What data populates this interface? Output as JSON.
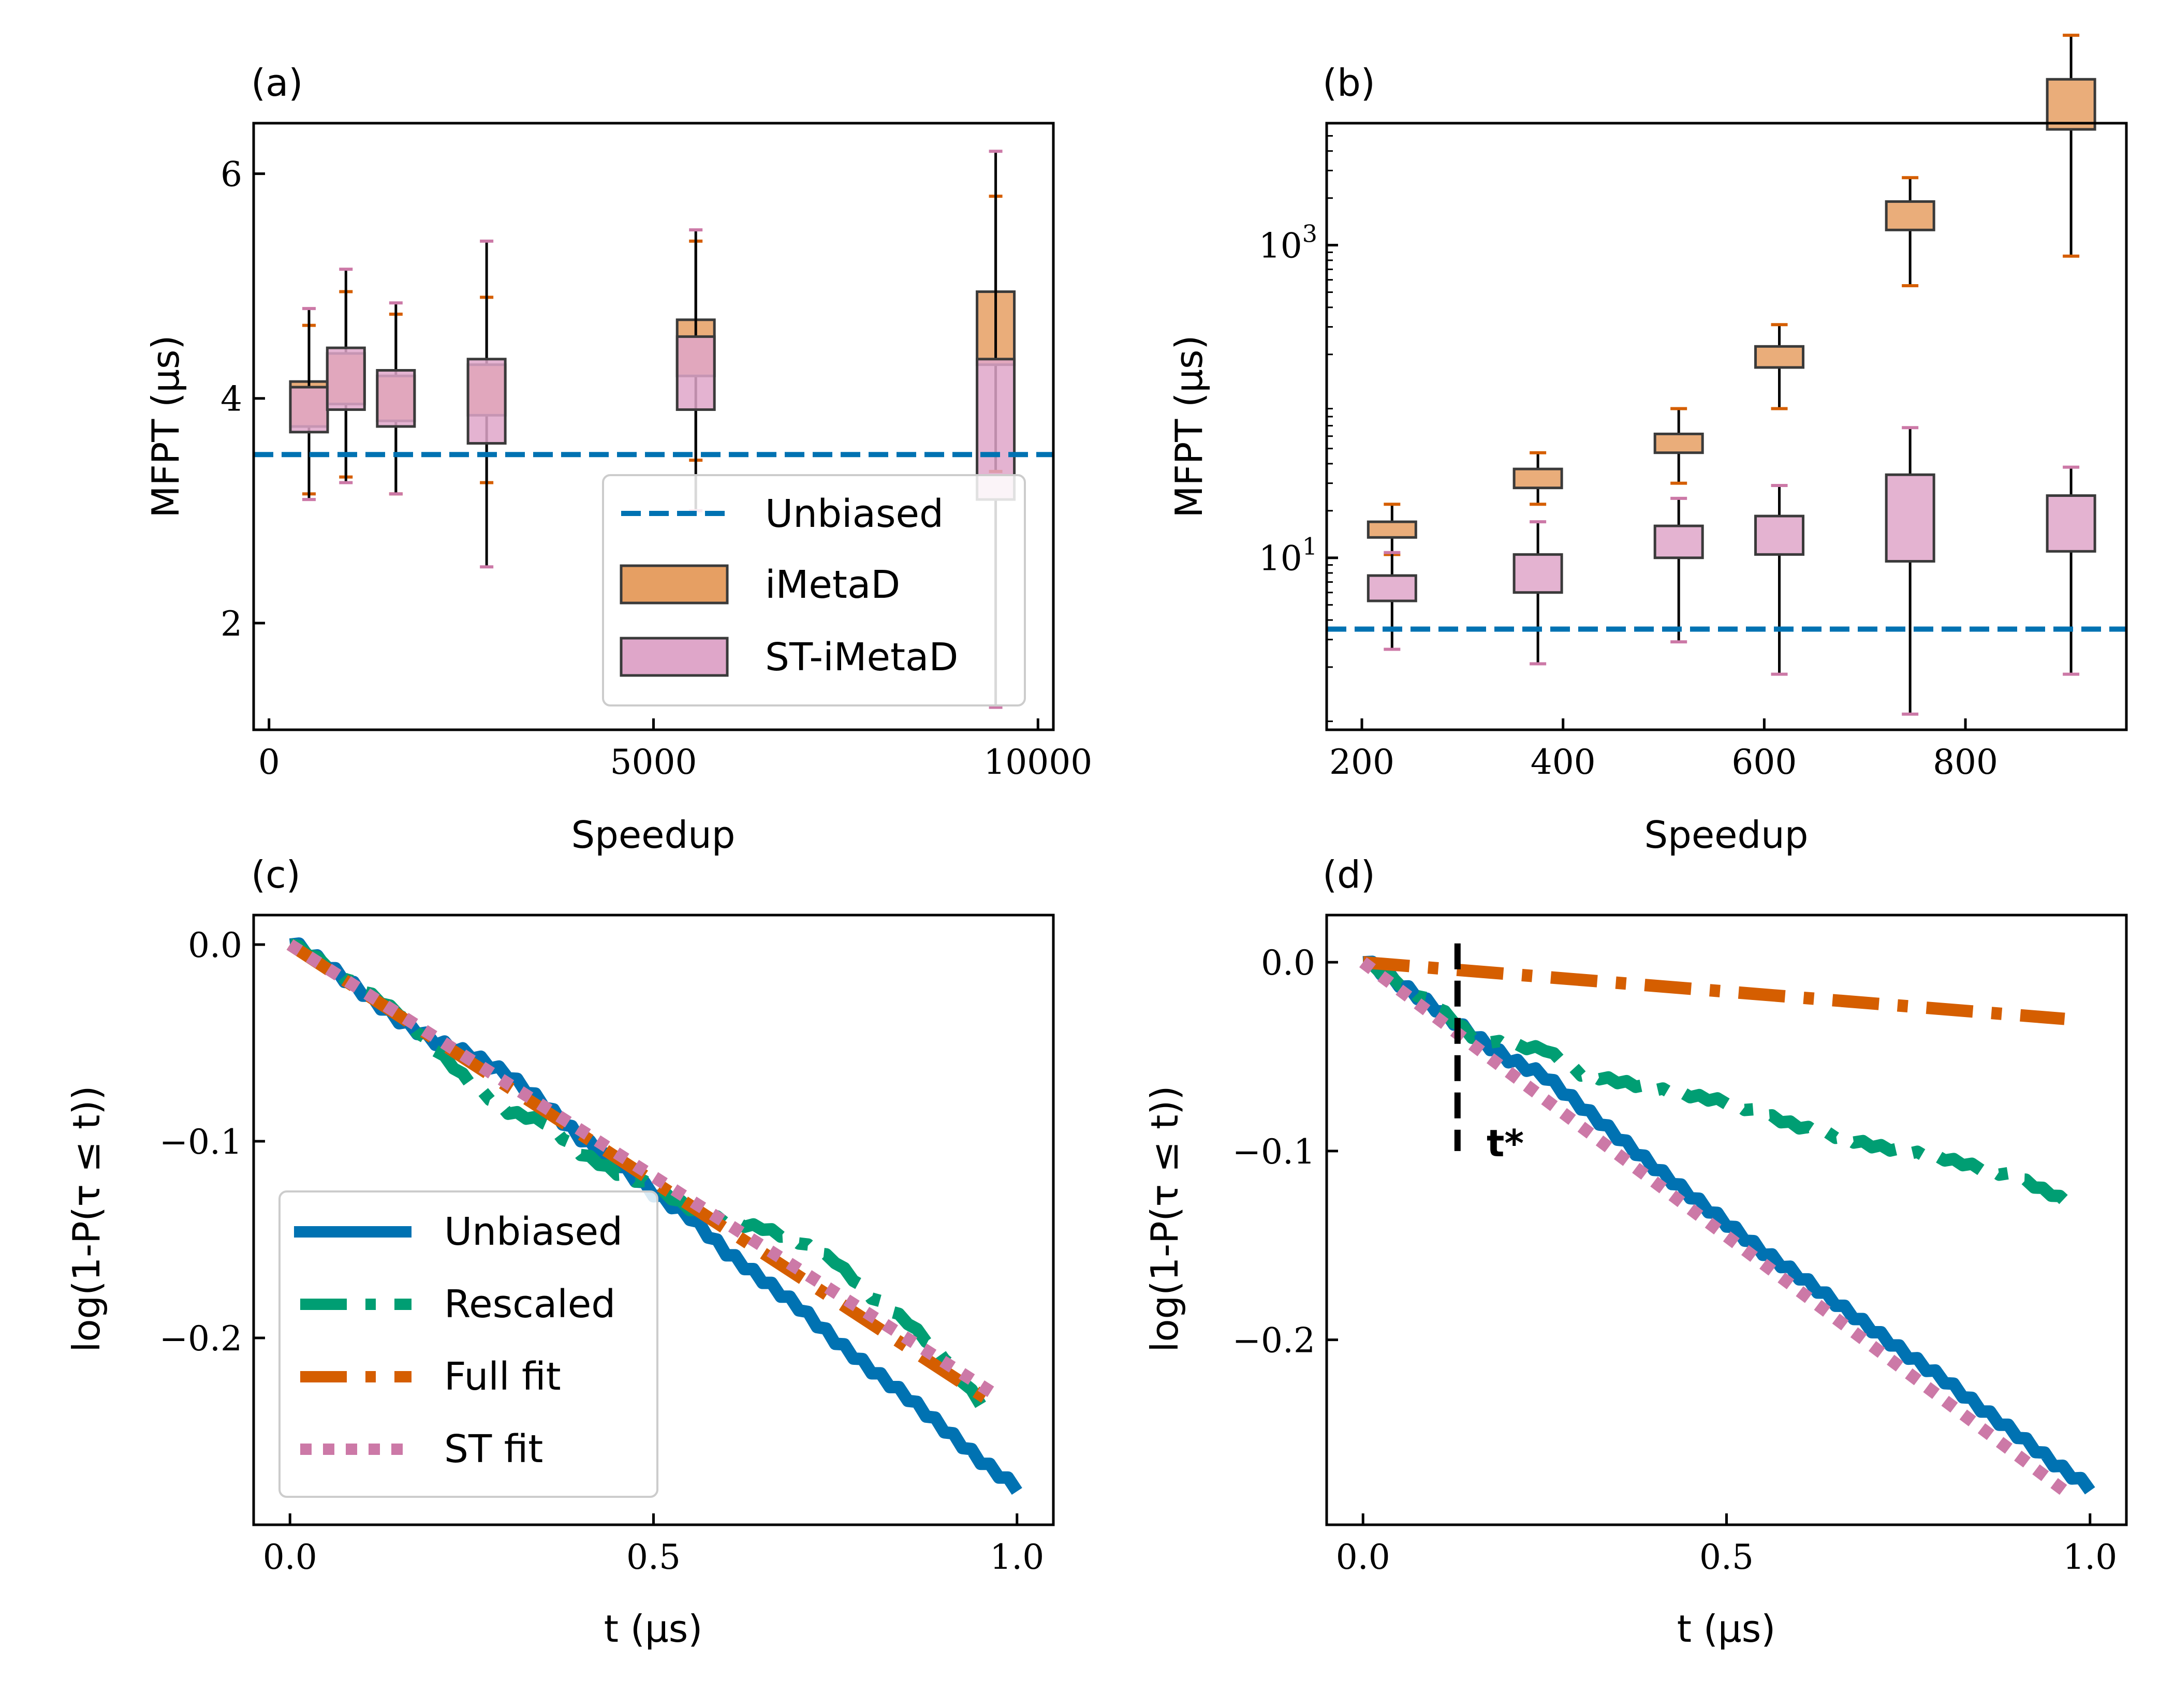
{
  "colors": {
    "unbiased": "#0072b2",
    "rescaled": "#009e73",
    "full_fit": "#d55e00",
    "st_fit": "#cc79a7",
    "imetad_fill": "#e69f63",
    "imetad_whisker": "#d55e00",
    "st_imetad_fill": "#dfa6c9",
    "st_imetad_whisker": "#cc79a7"
  },
  "chart_data": [
    {
      "panel": "(a)",
      "type": "box",
      "xlabel": "Speedup",
      "ylabel": "MFPT (μs)",
      "xlim": [
        -200,
        10200
      ],
      "ylim": [
        1.05,
        6.45
      ],
      "xticks": [
        0,
        5000,
        10000
      ],
      "xticklabels": [
        "0",
        "5000",
        "10000"
      ],
      "yticks": [
        2,
        4,
        6
      ],
      "yticklabels": [
        "2",
        "4",
        "6"
      ],
      "hline": {
        "name": "Unbiased",
        "y": 3.5
      },
      "legend_position": "lower-right",
      "legend": [
        "Unbiased",
        "iMetaD",
        "ST-iMetaD"
      ],
      "series": [
        {
          "name": "iMetaD",
          "boxes": [
            {
              "x": 520,
              "whislo": 3.15,
              "q1": 3.75,
              "q3": 4.15,
              "whishi": 4.65
            },
            {
              "x": 1000,
              "whislo": 3.3,
              "q1": 3.95,
              "q3": 4.4,
              "whishi": 4.95
            },
            {
              "x": 1650,
              "whislo": 3.15,
              "q1": 3.8,
              "q3": 4.2,
              "whishi": 4.75
            },
            {
              "x": 2830,
              "whislo": 3.25,
              "q1": 3.85,
              "q3": 4.3,
              "whishi": 4.9
            },
            {
              "x": 5550,
              "whislo": 3.45,
              "q1": 4.2,
              "q3": 4.7,
              "whishi": 5.4
            },
            {
              "x": 9450,
              "whislo": 3.35,
              "q1": 4.3,
              "q3": 4.95,
              "whishi": 5.8
            }
          ]
        },
        {
          "name": "ST-iMetaD",
          "boxes": [
            {
              "x": 520,
              "whislo": 3.1,
              "q1": 3.7,
              "q3": 4.1,
              "whishi": 4.8
            },
            {
              "x": 1000,
              "whislo": 3.25,
              "q1": 3.9,
              "q3": 4.45,
              "whishi": 5.15
            },
            {
              "x": 1650,
              "whislo": 3.15,
              "q1": 3.75,
              "q3": 4.25,
              "whishi": 4.85
            },
            {
              "x": 2830,
              "whislo": 2.5,
              "q1": 3.6,
              "q3": 4.35,
              "whishi": 5.4
            },
            {
              "x": 5550,
              "whislo": 3.0,
              "q1": 3.9,
              "q3": 4.55,
              "whishi": 5.5
            },
            {
              "x": 9450,
              "whislo": 1.25,
              "q1": 3.1,
              "q3": 4.35,
              "whishi": 6.2
            }
          ]
        }
      ]
    },
    {
      "panel": "(b)",
      "type": "box",
      "xlabel": "Speedup",
      "ylabel": "MFPT (μs)",
      "yscale": "log",
      "xlim": [
        165,
        960
      ],
      "ylim_log10": [
        -0.1,
        3.78
      ],
      "xticks": [
        200,
        400,
        600,
        800
      ],
      "xticklabels": [
        "200",
        "400",
        "600",
        "800"
      ],
      "yticks_log10": [
        1,
        3
      ],
      "yticklabels": [
        {
          "base": "10",
          "exp": "1"
        },
        {
          "base": "10",
          "exp": "3"
        }
      ],
      "hline": {
        "name": "Unbiased",
        "y": 3.5
      },
      "series": [
        {
          "name": "iMetaD",
          "boxes": [
            {
              "x": 230,
              "whislo": 10.5,
              "q1": 13.5,
              "q3": 17.0,
              "whishi": 22.0
            },
            {
              "x": 375,
              "whislo": 22.0,
              "q1": 28.0,
              "q3": 37.0,
              "whishi": 47.0
            },
            {
              "x": 515,
              "whislo": 30.0,
              "q1": 47.0,
              "q3": 62.0,
              "whishi": 90.0
            },
            {
              "x": 615,
              "whislo": 90.0,
              "q1": 165.0,
              "q3": 225.0,
              "whishi": 310.0
            },
            {
              "x": 745,
              "whislo": 550.0,
              "q1": 1250.0,
              "q3": 1900.0,
              "whishi": 2700.0
            },
            {
              "x": 905,
              "whislo": 850.0,
              "q1": 5500.0,
              "q3": 11500.0,
              "whishi": 22000.0
            }
          ]
        },
        {
          "name": "ST-iMetaD",
          "boxes": [
            {
              "x": 230,
              "whislo": 2.6,
              "q1": 5.3,
              "q3": 7.7,
              "whishi": 10.8
            },
            {
              "x": 375,
              "whislo": 2.1,
              "q1": 6.0,
              "q3": 10.5,
              "whishi": 17.0
            },
            {
              "x": 515,
              "whislo": 2.9,
              "q1": 10.0,
              "q3": 16.0,
              "whishi": 24.0
            },
            {
              "x": 615,
              "whislo": 1.8,
              "q1": 10.5,
              "q3": 18.5,
              "whishi": 29.0
            },
            {
              "x": 745,
              "whislo": 1.0,
              "q1": 9.5,
              "q3": 34.0,
              "whishi": 68.0
            },
            {
              "x": 905,
              "whislo": 1.8,
              "q1": 11.0,
              "q3": 25.0,
              "whishi": 38.0
            }
          ]
        }
      ]
    },
    {
      "panel": "(c)",
      "type": "line",
      "xlabel": "t (μs)",
      "ylabel": "log(1-P(τ ≤ t))",
      "xlim": [
        -0.05,
        1.05
      ],
      "ylim": [
        -0.295,
        0.015
      ],
      "xticks": [
        0.0,
        0.5,
        1.0
      ],
      "xticklabels": [
        "0.0",
        "0.5",
        "1.0"
      ],
      "yticks": [
        0.0,
        -0.1,
        -0.2
      ],
      "yticklabels": [
        "0.0",
        "−0.1",
        "−0.2"
      ],
      "legend_position": "lower-left",
      "legend": [
        "Unbiased",
        "Rescaled",
        "Full fit",
        "ST fit"
      ],
      "series": [
        {
          "name": "Unbiased",
          "style": "solid",
          "x": [
            0,
            0.05,
            0.1,
            0.15,
            0.2,
            0.25,
            0.3,
            0.35,
            0.4,
            0.45,
            0.5,
            0.55,
            0.6,
            0.65,
            0.7,
            0.75,
            0.8,
            0.85,
            0.9,
            0.95,
            1.0
          ],
          "y": [
            0,
            -0.012,
            -0.026,
            -0.04,
            -0.051,
            -0.058,
            -0.068,
            -0.083,
            -0.1,
            -0.113,
            -0.128,
            -0.14,
            -0.158,
            -0.172,
            -0.186,
            -0.203,
            -0.218,
            -0.232,
            -0.248,
            -0.264,
            -0.278
          ]
        },
        {
          "name": "Rescaled",
          "style": "dashdot",
          "x": [
            0,
            0.05,
            0.1,
            0.15,
            0.2,
            0.25,
            0.3,
            0.35,
            0.4,
            0.45,
            0.5,
            0.55,
            0.6,
            0.65,
            0.7,
            0.75,
            0.8,
            0.85,
            0.9,
            0.95
          ],
          "y": [
            0,
            -0.011,
            -0.024,
            -0.036,
            -0.054,
            -0.072,
            -0.086,
            -0.091,
            -0.107,
            -0.117,
            -0.124,
            -0.135,
            -0.142,
            -0.145,
            -0.152,
            -0.162,
            -0.18,
            -0.193,
            -0.211,
            -0.234
          ]
        },
        {
          "name": "Full fit",
          "style": "dashdot",
          "x": [
            0,
            0.975
          ],
          "y": [
            0,
            -0.235
          ]
        },
        {
          "name": "ST fit",
          "style": "dotted",
          "x": [
            0,
            0.975
          ],
          "y": [
            0,
            -0.23
          ]
        }
      ]
    },
    {
      "panel": "(d)",
      "type": "line",
      "xlabel": "t (μs)",
      "ylabel": "log(1-P(τ ≤ t))",
      "xlim": [
        -0.05,
        1.05
      ],
      "ylim": [
        -0.298,
        0.025
      ],
      "xticks": [
        0.0,
        0.5,
        1.0
      ],
      "xticklabels": [
        "0.0",
        "0.5",
        "1.0"
      ],
      "yticks": [
        0.0,
        -0.1,
        -0.2
      ],
      "yticklabels": [
        "0.0",
        "−0.1",
        "−0.2"
      ],
      "vline": {
        "x": 0.13,
        "y_from": -0.1,
        "y_to": 0.01
      },
      "annotation": {
        "text": "t*",
        "x": 0.17,
        "y": -0.1
      },
      "series": [
        {
          "name": "Unbiased",
          "style": "solid",
          "x": [
            0,
            0.05,
            0.1,
            0.15,
            0.2,
            0.25,
            0.3,
            0.35,
            0.4,
            0.45,
            0.5,
            0.55,
            0.6,
            0.65,
            0.7,
            0.75,
            0.8,
            0.85,
            0.9,
            0.95,
            1.0
          ],
          "y": [
            0,
            -0.013,
            -0.026,
            -0.04,
            -0.053,
            -0.062,
            -0.078,
            -0.094,
            -0.11,
            -0.125,
            -0.14,
            -0.155,
            -0.168,
            -0.182,
            -0.196,
            -0.21,
            -0.223,
            -0.238,
            -0.252,
            -0.267,
            -0.28
          ]
        },
        {
          "name": "Rescaled",
          "style": "dashdot",
          "x": [
            0,
            0.05,
            0.1,
            0.15,
            0.2,
            0.25,
            0.3,
            0.4,
            0.5,
            0.6,
            0.7,
            0.8,
            0.9,
            0.97
          ],
          "y": [
            0,
            -0.012,
            -0.024,
            -0.04,
            -0.045,
            -0.047,
            -0.06,
            -0.068,
            -0.075,
            -0.088,
            -0.098,
            -0.105,
            -0.115,
            -0.128
          ]
        },
        {
          "name": "Full fit",
          "style": "dashdot",
          "x": [
            0,
            0.965
          ],
          "y": [
            0,
            -0.03
          ]
        },
        {
          "name": "ST fit",
          "style": "dotted",
          "x": [
            0,
            0.965
          ],
          "y": [
            0,
            -0.28
          ]
        }
      ]
    }
  ]
}
